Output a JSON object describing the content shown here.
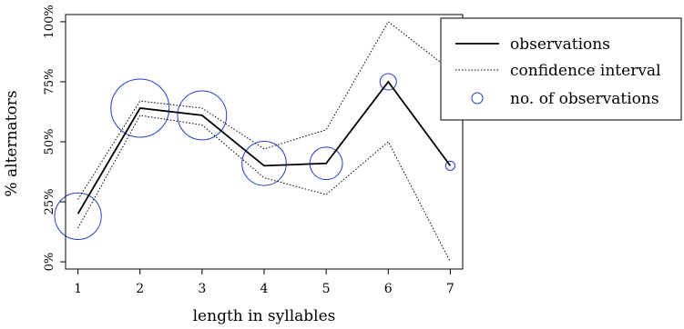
{
  "chart_data": {
    "type": "line",
    "xlabel": "length in syllables",
    "ylabel": "% alternators",
    "x": [
      1,
      2,
      3,
      4,
      5,
      6,
      7
    ],
    "xlim": [
      0.8,
      7.2
    ],
    "ylim": [
      -0.03,
      1.03
    ],
    "x_ticks": [
      1,
      2,
      3,
      4,
      5,
      6,
      7
    ],
    "y_ticks": [
      0,
      0.25,
      0.5,
      0.75,
      1.0
    ],
    "y_tick_labels": [
      "0%",
      "25%",
      "50%",
      "75%",
      "100%"
    ],
    "series": [
      {
        "name": "observations",
        "style": "solid",
        "values": [
          0.2,
          0.64,
          0.61,
          0.4,
          0.41,
          0.75,
          0.4
        ]
      },
      {
        "name": "confidence interval",
        "style": "dotted",
        "upper": [
          0.26,
          0.67,
          0.64,
          0.47,
          0.55,
          1.0,
          0.8
        ],
        "lower": [
          0.14,
          0.61,
          0.57,
          0.35,
          0.28,
          0.5,
          0.0
        ]
      },
      {
        "name": "no. of observations",
        "style": "circle",
        "values": [
          0.19,
          0.64,
          0.61,
          0.41,
          0.41,
          0.75,
          0.4
        ],
        "relative_size": [
          1.0,
          1.25,
          1.05,
          0.95,
          0.7,
          0.35,
          0.2
        ]
      }
    ],
    "legend": {
      "position": "top-right",
      "entries": [
        "observations",
        "confidence interval",
        "no. of observations"
      ]
    },
    "colors": {
      "circles": "#1f3fd0",
      "line": "#000000",
      "frame": "#000000"
    }
  }
}
